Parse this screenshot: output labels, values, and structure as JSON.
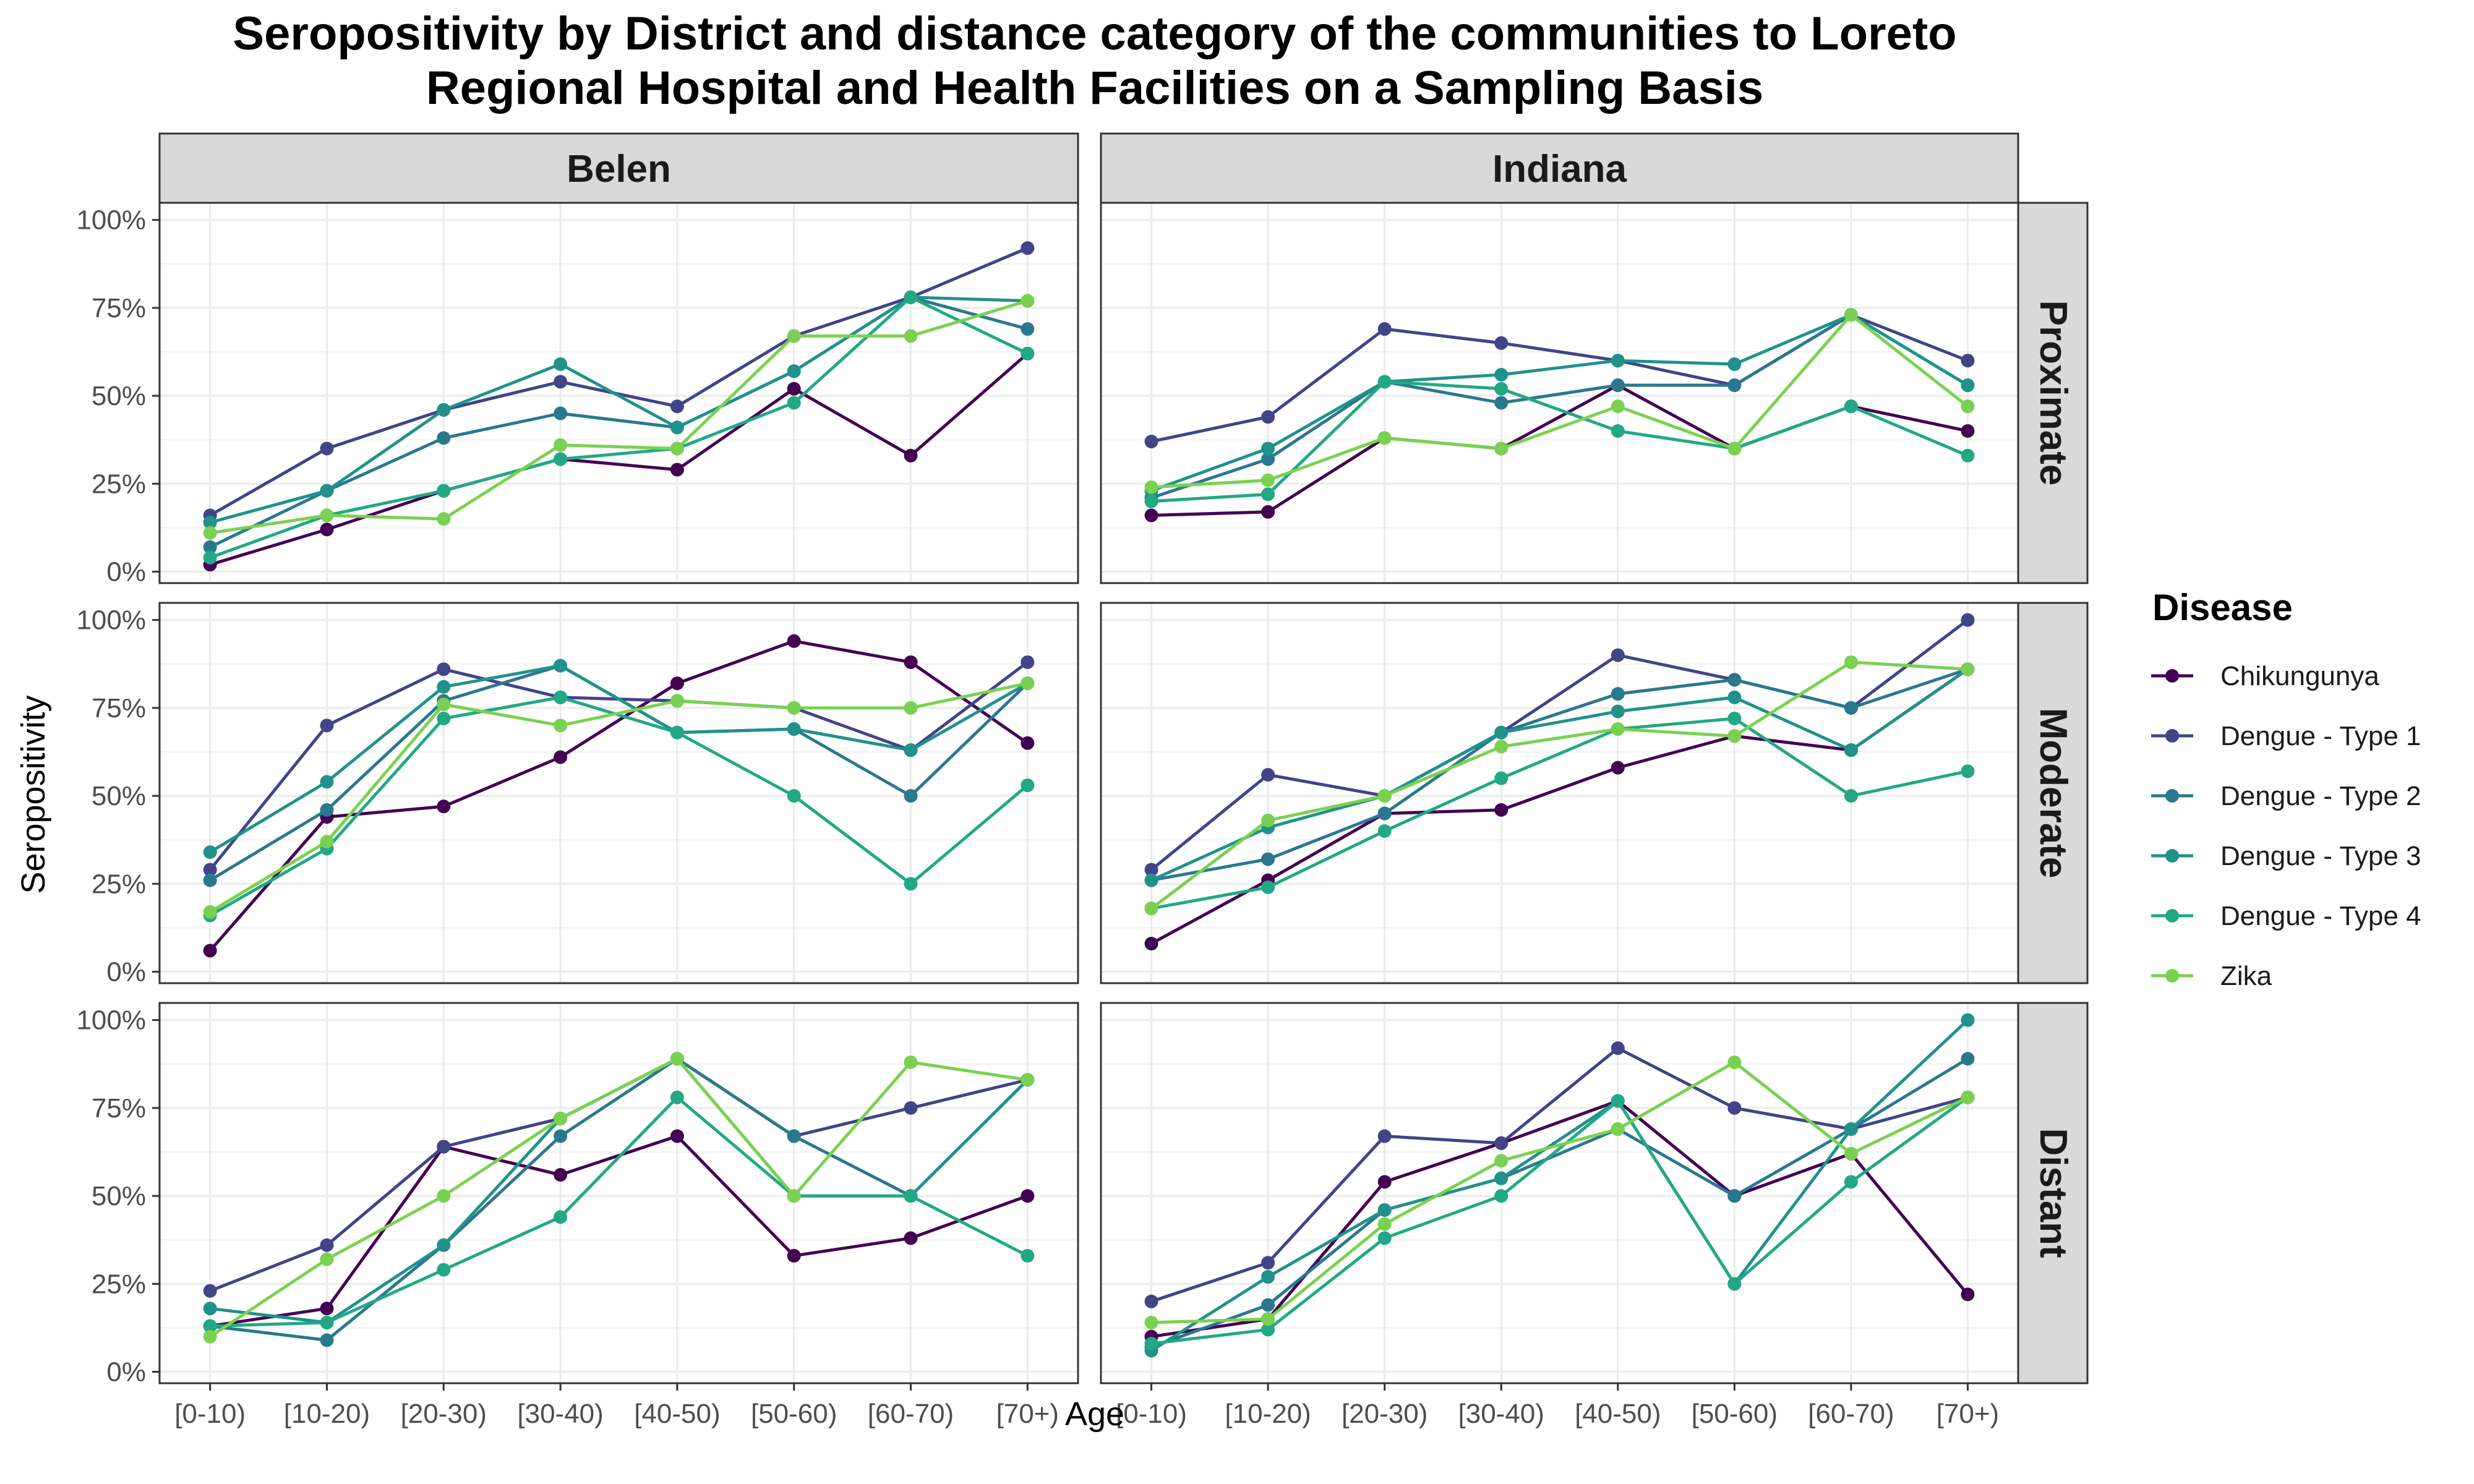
{
  "chart_data": {
    "type": "line",
    "title_lines": [
      "Seropositivity by District and distance category of the communities to Loreto",
      "Regional Hospital and Health Facilities on a Sampling Basis"
    ],
    "xlabel": "Age",
    "ylabel": "Seropositivity",
    "categories": [
      "[0-10)",
      "[10-20)",
      "[20-30)",
      "[30-40)",
      "[40-50)",
      "[50-60)",
      "[60-70)",
      "[70+)"
    ],
    "yticks": [
      "0%",
      "25%",
      "50%",
      "75%",
      "100%"
    ],
    "ylim": [
      0,
      1.0
    ],
    "grid": true,
    "legend": {
      "title": "Disease",
      "placement": "right",
      "entries": [
        "Chikungunya",
        "Dengue - Type 1",
        "Dengue - Type 2",
        "Dengue - Type 3",
        "Dengue - Type 4",
        "Zika"
      ]
    },
    "colors": {
      "Chikungunya": "#440154",
      "Dengue - Type 1": "#414487",
      "Dengue - Type 2": "#2a788e",
      "Dengue - Type 3": "#21918c",
      "Dengue - Type 4": "#22a884",
      "Zika": "#7ad151"
    },
    "columns": [
      "Belen",
      "Indiana"
    ],
    "rows": [
      "Proximate",
      "Moderate",
      "Distant"
    ],
    "panels": [
      {
        "district": "Belen",
        "distance": "Proximate",
        "series": [
          {
            "name": "Chikungunya",
            "values": [
              0.02,
              0.12,
              0.23,
              0.32,
              0.29,
              0.52,
              0.33,
              0.62
            ]
          },
          {
            "name": "Dengue - Type 1",
            "values": [
              0.16,
              0.35,
              0.46,
              0.54,
              0.47,
              0.67,
              0.78,
              0.92
            ]
          },
          {
            "name": "Dengue - Type 2",
            "values": [
              0.07,
              0.23,
              0.38,
              0.45,
              0.41,
              0.57,
              0.78,
              0.69
            ]
          },
          {
            "name": "Dengue - Type 3",
            "values": [
              0.14,
              0.23,
              0.46,
              0.59,
              0.41,
              0.57,
              0.78,
              0.77
            ]
          },
          {
            "name": "Dengue - Type 4",
            "values": [
              0.04,
              0.16,
              0.23,
              0.32,
              0.35,
              0.48,
              0.78,
              0.62
            ]
          },
          {
            "name": "Zika",
            "values": [
              0.11,
              0.16,
              0.15,
              0.36,
              0.35,
              0.67,
              0.67,
              0.77
            ]
          }
        ]
      },
      {
        "district": "Indiana",
        "distance": "Proximate",
        "series": [
          {
            "name": "Chikungunya",
            "values": [
              0.16,
              0.17,
              0.38,
              0.35,
              0.53,
              0.35,
              0.47,
              0.4
            ]
          },
          {
            "name": "Dengue - Type 1",
            "values": [
              0.37,
              0.44,
              0.69,
              0.65,
              0.6,
              0.53,
              0.73,
              0.6
            ]
          },
          {
            "name": "Dengue - Type 2",
            "values": [
              0.21,
              0.32,
              0.54,
              0.48,
              0.53,
              0.53,
              0.73,
              0.53
            ]
          },
          {
            "name": "Dengue - Type 3",
            "values": [
              0.23,
              0.35,
              0.54,
              0.56,
              0.6,
              0.59,
              0.73,
              0.53
            ]
          },
          {
            "name": "Dengue - Type 4",
            "values": [
              0.2,
              0.22,
              0.54,
              0.52,
              0.4,
              0.35,
              0.47,
              0.33
            ]
          },
          {
            "name": "Zika",
            "values": [
              0.24,
              0.26,
              0.38,
              0.35,
              0.47,
              0.35,
              0.73,
              0.47
            ]
          }
        ]
      },
      {
        "district": "Belen",
        "distance": "Moderate",
        "series": [
          {
            "name": "Chikungunya",
            "values": [
              0.06,
              0.44,
              0.47,
              0.61,
              0.82,
              0.94,
              0.88,
              0.65
            ]
          },
          {
            "name": "Dengue - Type 1",
            "values": [
              0.29,
              0.7,
              0.86,
              0.78,
              0.77,
              0.75,
              0.63,
              0.88
            ]
          },
          {
            "name": "Dengue - Type 2",
            "values": [
              0.26,
              0.46,
              0.77,
              0.87,
              0.68,
              0.69,
              0.5,
              0.82
            ]
          },
          {
            "name": "Dengue - Type 3",
            "values": [
              0.34,
              0.54,
              0.81,
              0.87,
              0.68,
              0.69,
              0.63,
              0.82
            ]
          },
          {
            "name": "Dengue - Type 4",
            "values": [
              0.16,
              0.35,
              0.72,
              0.78,
              0.68,
              0.5,
              0.25,
              0.53
            ]
          },
          {
            "name": "Zika",
            "values": [
              0.17,
              0.37,
              0.76,
              0.7,
              0.77,
              0.75,
              0.75,
              0.82
            ]
          }
        ]
      },
      {
        "district": "Indiana",
        "distance": "Moderate",
        "series": [
          {
            "name": "Chikungunya",
            "values": [
              0.08,
              0.26,
              0.45,
              0.46,
              0.58,
              0.67,
              0.63,
              0.86
            ]
          },
          {
            "name": "Dengue - Type 1",
            "values": [
              0.29,
              0.56,
              0.5,
              0.68,
              0.9,
              0.83,
              0.75,
              1.0
            ]
          },
          {
            "name": "Dengue - Type 2",
            "values": [
              0.26,
              0.32,
              0.45,
              0.68,
              0.79,
              0.83,
              0.75,
              0.86
            ]
          },
          {
            "name": "Dengue - Type 3",
            "values": [
              0.26,
              0.41,
              0.5,
              0.68,
              0.74,
              0.78,
              0.63,
              0.86
            ]
          },
          {
            "name": "Dengue - Type 4",
            "values": [
              0.18,
              0.24,
              0.4,
              0.55,
              0.69,
              0.72,
              0.5,
              0.57
            ]
          },
          {
            "name": "Zika",
            "values": [
              0.18,
              0.43,
              0.5,
              0.64,
              0.69,
              0.67,
              0.88,
              0.86
            ]
          }
        ]
      },
      {
        "district": "Belen",
        "distance": "Distant",
        "series": [
          {
            "name": "Chikungunya",
            "values": [
              0.13,
              0.18,
              0.64,
              0.56,
              0.67,
              0.33,
              0.38,
              0.5
            ]
          },
          {
            "name": "Dengue - Type 1",
            "values": [
              0.23,
              0.36,
              0.64,
              0.72,
              0.89,
              0.67,
              0.75,
              0.83
            ]
          },
          {
            "name": "Dengue - Type 2",
            "values": [
              0.13,
              0.09,
              0.36,
              0.67,
              0.89,
              0.67,
              0.5,
              0.83
            ]
          },
          {
            "name": "Dengue - Type 3",
            "values": [
              0.18,
              0.14,
              0.36,
              0.72,
              0.89,
              0.5,
              0.5,
              0.83
            ]
          },
          {
            "name": "Dengue - Type 4",
            "values": [
              0.13,
              0.14,
              0.29,
              0.44,
              0.78,
              0.5,
              0.5,
              0.33
            ]
          },
          {
            "name": "Zika",
            "values": [
              0.1,
              0.32,
              0.5,
              0.72,
              0.89,
              0.5,
              0.88,
              0.83
            ]
          }
        ]
      },
      {
        "district": "Indiana",
        "distance": "Distant",
        "series": [
          {
            "name": "Chikungunya",
            "values": [
              0.1,
              0.15,
              0.54,
              0.65,
              0.77,
              0.5,
              0.62,
              0.22
            ]
          },
          {
            "name": "Dengue - Type 1",
            "values": [
              0.2,
              0.31,
              0.67,
              0.65,
              0.92,
              0.75,
              0.69,
              0.78
            ]
          },
          {
            "name": "Dengue - Type 2",
            "values": [
              0.07,
              0.19,
              0.46,
              0.55,
              0.69,
              0.5,
              0.69,
              0.89
            ]
          },
          {
            "name": "Dengue - Type 3",
            "values": [
              0.06,
              0.27,
              0.46,
              0.55,
              0.77,
              0.25,
              0.69,
              1.0
            ]
          },
          {
            "name": "Dengue - Type 4",
            "values": [
              0.08,
              0.12,
              0.38,
              0.5,
              0.77,
              0.25,
              0.54,
              0.78
            ]
          },
          {
            "name": "Zika",
            "values": [
              0.14,
              0.15,
              0.42,
              0.6,
              0.69,
              0.88,
              0.62,
              0.78
            ]
          }
        ]
      }
    ]
  }
}
